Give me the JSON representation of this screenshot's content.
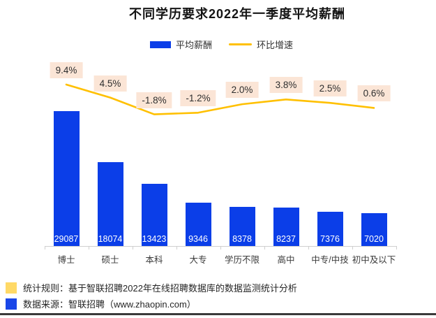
{
  "chart_data": {
    "type": "bar+line",
    "title": "不同学历要求2022年一季度平均薪酬",
    "categories": [
      "博士",
      "硕士",
      "本科",
      "大专",
      "学历不限",
      "高中",
      "中专/中技",
      "初中及以下"
    ],
    "series": [
      {
        "name": "平均薪酬",
        "type": "bar",
        "color": "#0b3ee8",
        "values": [
          29087,
          18074,
          13423,
          9346,
          8378,
          8237,
          7376,
          7020
        ],
        "value_labels": [
          "29087",
          "18074",
          "13423",
          "9346",
          "8378",
          "8237",
          "7376",
          "7020"
        ],
        "value_label_color": "#ffffff"
      },
      {
        "name": "环比增速",
        "type": "line",
        "color": "#ffc000",
        "values": [
          9.4,
          4.5,
          -1.8,
          -1.2,
          2.0,
          3.8,
          2.5,
          0.6
        ],
        "value_labels": [
          "9.4%",
          "4.5%",
          "-1.8%",
          "-1.2%",
          "2.0%",
          "3.8%",
          "2.5%",
          "0.6%"
        ],
        "label_bg": "#fbe5d6"
      }
    ],
    "legend_position": "top-center",
    "gridlines": false,
    "y_axis_visible": false,
    "bar_ylim": [
      0,
      30000
    ]
  },
  "footer": {
    "notes": [
      {
        "swatch_color": "#ffd966",
        "text": "统计规则：基于智联招聘2022年在线招聘数据库的数据监测统计分析"
      },
      {
        "swatch_color": "#1a46e8",
        "text": "数据来源：智联招聘（www.zhaopin.com）"
      }
    ]
  }
}
